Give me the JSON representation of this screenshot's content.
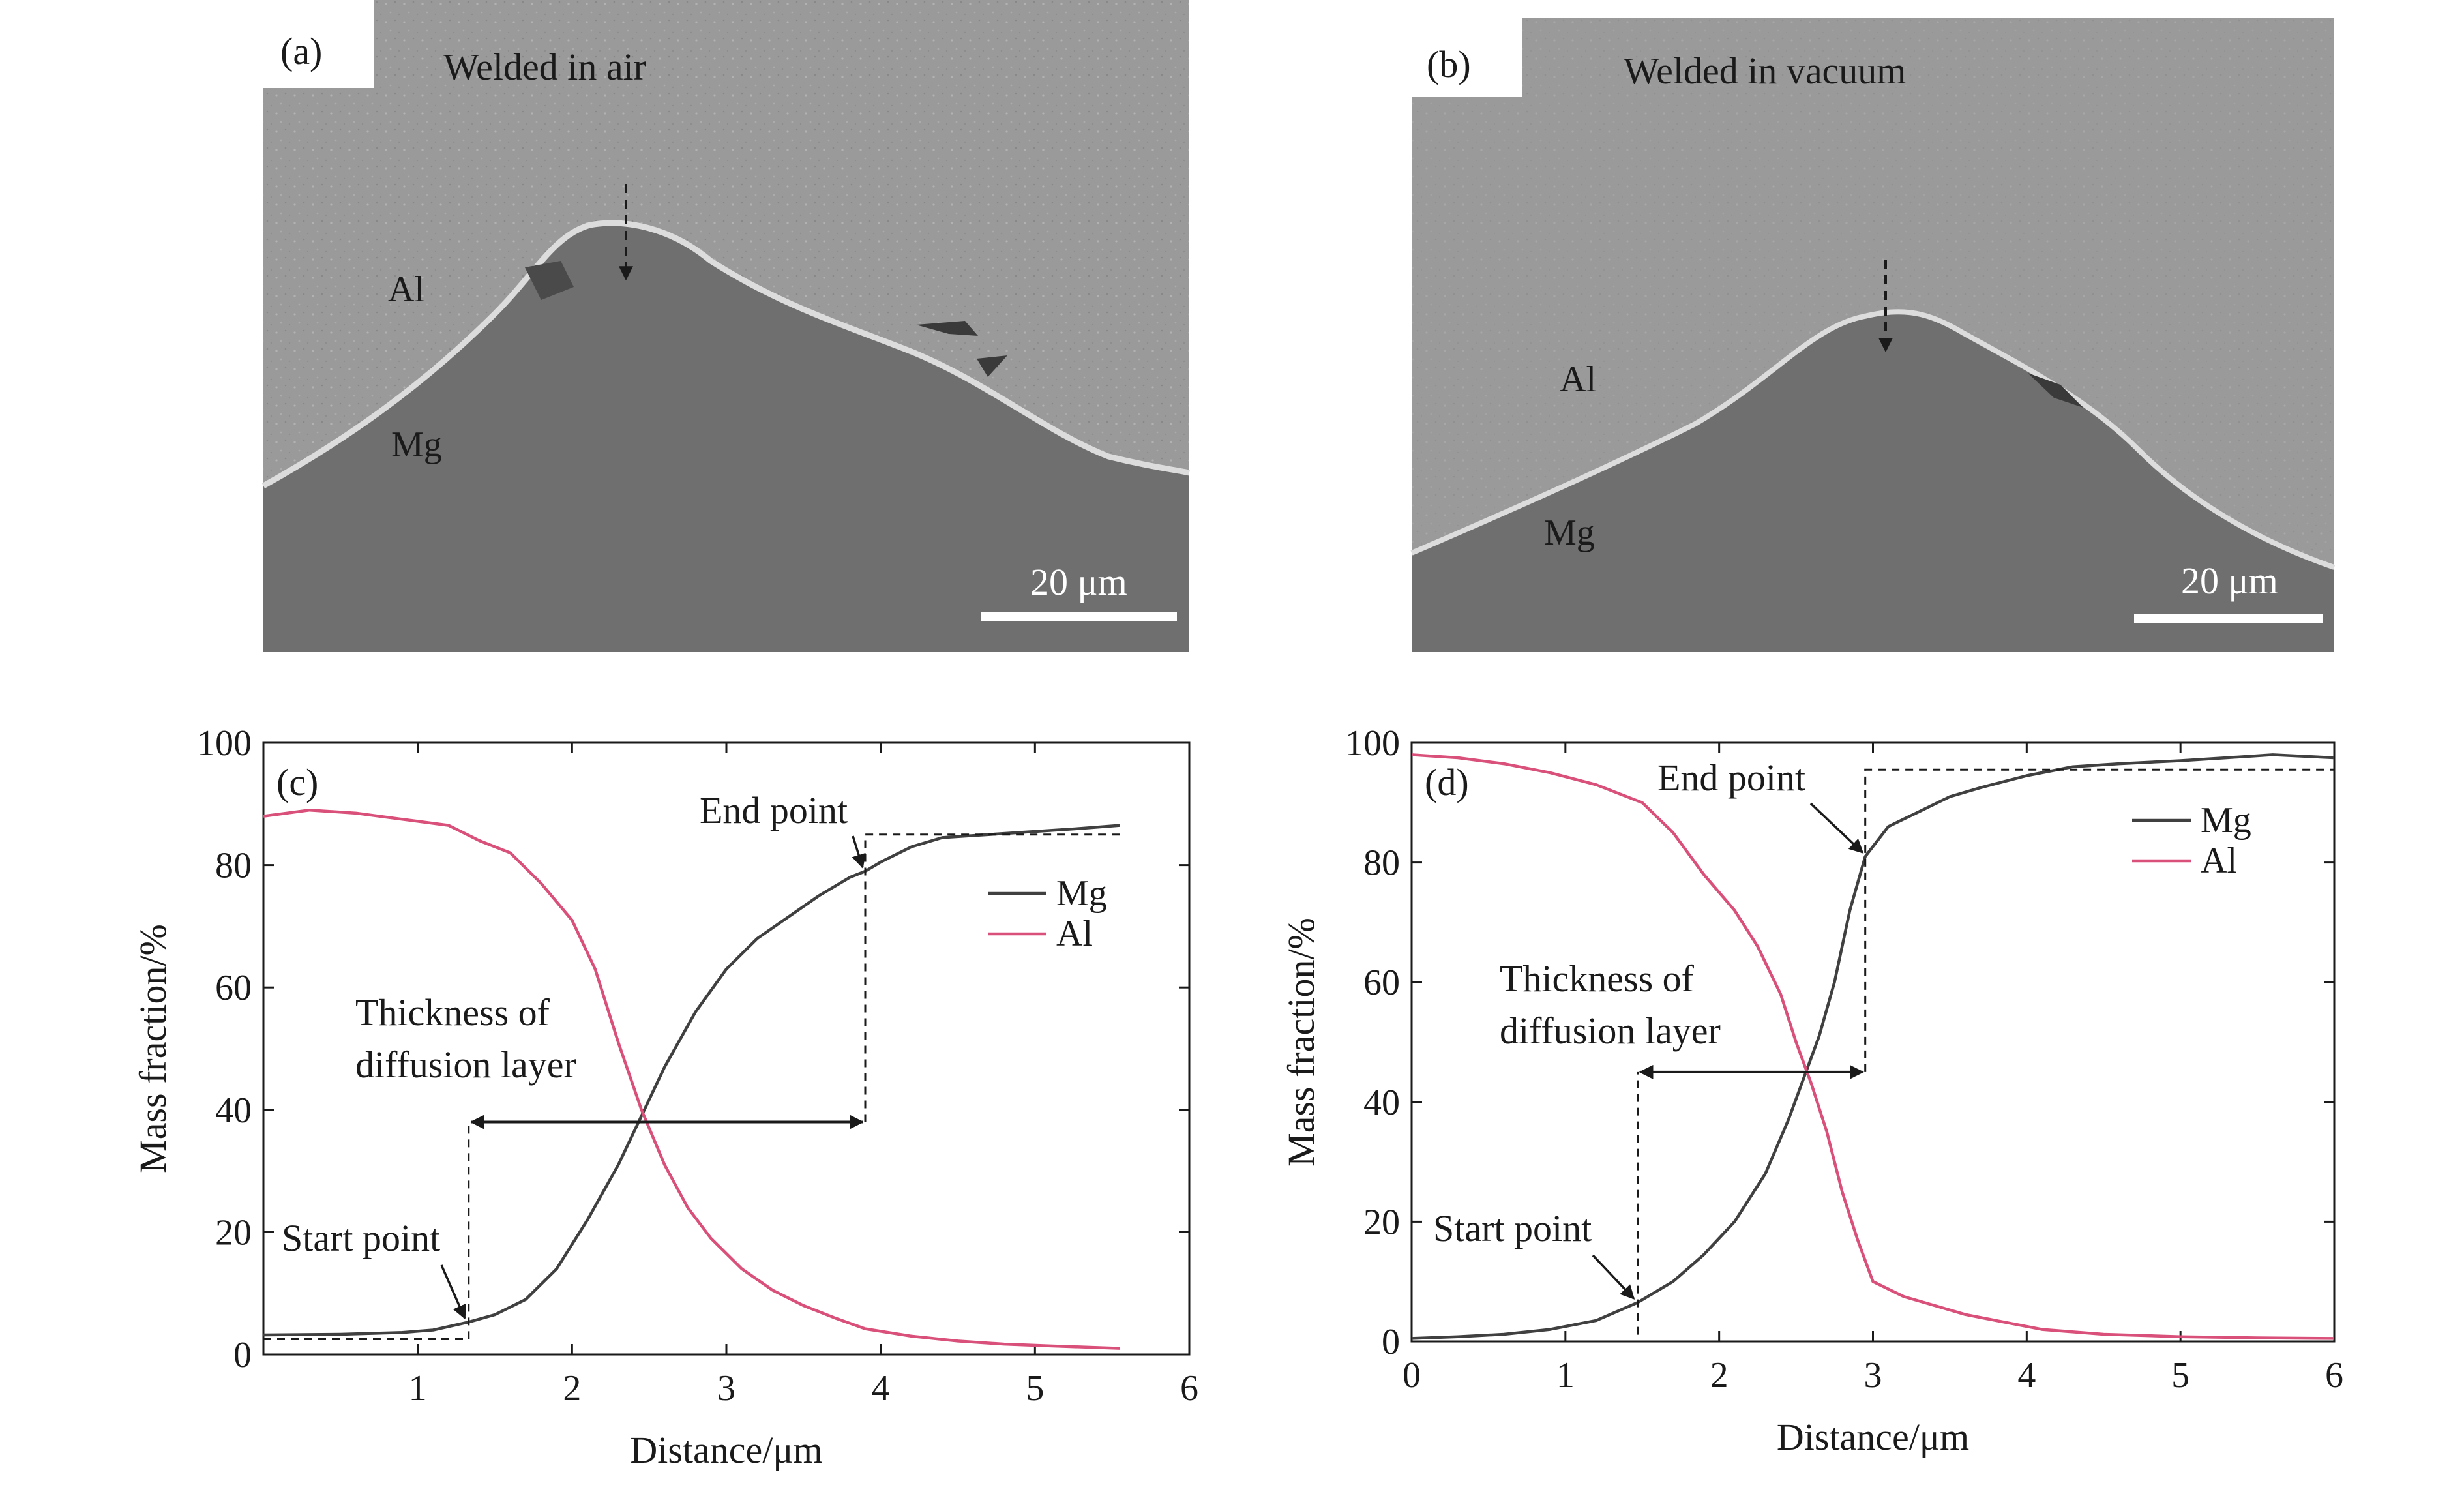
{
  "micrographs": [
    {
      "panel_label": "(a)",
      "title": "Welded in air",
      "phase_top": "Al",
      "phase_bottom": "Mg",
      "scale_bar": "20 μm",
      "colors": {
        "al": "#9a9a9a",
        "mg": "#6f6f6f",
        "interface": "#d8d8d8"
      }
    },
    {
      "panel_label": "(b)",
      "title": "Welded in vacuum",
      "phase_top": "Al",
      "phase_bottom": "Mg",
      "scale_bar": "20 μm",
      "colors": {
        "al": "#9a9a9a",
        "mg": "#6f6f6f",
        "interface": "#d8d8d8"
      }
    }
  ],
  "chart_data": [
    {
      "type": "line",
      "panel_label": "(c)",
      "xlabel": "Distance/μm",
      "ylabel": "Mass fraction/%",
      "xlim": [
        0,
        6
      ],
      "ylim": [
        0,
        100
      ],
      "xticks": [
        "1",
        "2",
        "3",
        "4",
        "5",
        "6"
      ],
      "yticks": [
        "0",
        "20",
        "40",
        "60",
        "80",
        "100"
      ],
      "grid": false,
      "legend_position": "upper-right",
      "series": [
        {
          "name": "Mg",
          "color": "#404040",
          "points": [
            [
              0,
              3.2
            ],
            [
              0.5,
              3.3
            ],
            [
              0.9,
              3.6
            ],
            [
              1.1,
              4.0
            ],
            [
              1.33,
              5.3
            ],
            [
              1.5,
              6.5
            ],
            [
              1.7,
              9.0
            ],
            [
              1.9,
              14.0
            ],
            [
              2.1,
              22.0
            ],
            [
              2.3,
              31.0
            ],
            [
              2.45,
              39.0
            ],
            [
              2.6,
              47.0
            ],
            [
              2.8,
              56.0
            ],
            [
              3.0,
              63.0
            ],
            [
              3.2,
              68.0
            ],
            [
              3.4,
              71.5
            ],
            [
              3.6,
              75.0
            ],
            [
              3.8,
              78.0
            ],
            [
              3.9,
              79.0
            ],
            [
              4.0,
              80.5
            ],
            [
              4.2,
              83.0
            ],
            [
              4.4,
              84.5
            ],
            [
              4.7,
              85.0
            ],
            [
              5.0,
              85.5
            ],
            [
              5.3,
              86.0
            ],
            [
              5.55,
              86.5
            ]
          ]
        },
        {
          "name": "Al",
          "color": "#d9507a",
          "points": [
            [
              0,
              88.0
            ],
            [
              0.3,
              89.0
            ],
            [
              0.6,
              88.5
            ],
            [
              0.9,
              87.5
            ],
            [
              1.2,
              86.5
            ],
            [
              1.4,
              84.0
            ],
            [
              1.6,
              82.0
            ],
            [
              1.8,
              77.0
            ],
            [
              2.0,
              71.0
            ],
            [
              2.15,
              63.0
            ],
            [
              2.3,
              51.0
            ],
            [
              2.45,
              40.0
            ],
            [
              2.6,
              31.0
            ],
            [
              2.75,
              24.0
            ],
            [
              2.9,
              19.0
            ],
            [
              3.1,
              14.0
            ],
            [
              3.3,
              10.5
            ],
            [
              3.5,
              8.0
            ],
            [
              3.7,
              6.0
            ],
            [
              3.9,
              4.2
            ],
            [
              4.2,
              3.0
            ],
            [
              4.5,
              2.2
            ],
            [
              4.8,
              1.7
            ],
            [
              5.1,
              1.4
            ],
            [
              5.55,
              1.0
            ]
          ]
        }
      ],
      "annotations": {
        "start_label": "Start point",
        "end_label": "End point",
        "layer_label_1": "Thickness of",
        "layer_label_2": "diffusion layer",
        "start_point": [
          1.33,
          5.3
        ],
        "end_point": [
          3.9,
          79.0
        ],
        "start_x": 1.33,
        "end_x": 3.9,
        "start_level": 2.5,
        "end_level": 85.0,
        "arrow_y": 38.0
      }
    },
    {
      "type": "line",
      "panel_label": "(d)",
      "xlabel": "Distance/μm",
      "ylabel": "Mass fraction/%",
      "xlim": [
        0,
        6
      ],
      "ylim": [
        0,
        100
      ],
      "xticks": [
        "0",
        "1",
        "2",
        "3",
        "4",
        "5",
        "6"
      ],
      "yticks": [
        "0",
        "20",
        "40",
        "60",
        "80",
        "100"
      ],
      "grid": false,
      "legend_position": "upper-right",
      "series": [
        {
          "name": "Mg",
          "color": "#404040",
          "points": [
            [
              0,
              0.5
            ],
            [
              0.3,
              0.8
            ],
            [
              0.6,
              1.2
            ],
            [
              0.9,
              2.0
            ],
            [
              1.2,
              3.5
            ],
            [
              1.47,
              6.5
            ],
            [
              1.7,
              10.0
            ],
            [
              1.9,
              14.5
            ],
            [
              2.1,
              20.0
            ],
            [
              2.3,
              28.0
            ],
            [
              2.45,
              37.0
            ],
            [
              2.55,
              44.0
            ],
            [
              2.65,
              51.0
            ],
            [
              2.75,
              60.0
            ],
            [
              2.85,
              72.0
            ],
            [
              2.95,
              81.0
            ],
            [
              3.1,
              86.0
            ],
            [
              3.3,
              88.5
            ],
            [
              3.5,
              91.0
            ],
            [
              3.7,
              92.5
            ],
            [
              4.0,
              94.5
            ],
            [
              4.3,
              96.0
            ],
            [
              4.6,
              96.5
            ],
            [
              5.0,
              97.0
            ],
            [
              5.3,
              97.5
            ],
            [
              5.6,
              98.0
            ],
            [
              6.0,
              97.5
            ]
          ]
        },
        {
          "name": "Al",
          "color": "#d9507a",
          "points": [
            [
              0,
              98.0
            ],
            [
              0.3,
              97.5
            ],
            [
              0.6,
              96.5
            ],
            [
              0.9,
              95.0
            ],
            [
              1.2,
              93.0
            ],
            [
              1.5,
              90.0
            ],
            [
              1.7,
              85.0
            ],
            [
              1.9,
              78.0
            ],
            [
              2.1,
              72.0
            ],
            [
              2.25,
              66.0
            ],
            [
              2.4,
              58.0
            ],
            [
              2.5,
              50.0
            ],
            [
              2.6,
              43.0
            ],
            [
              2.7,
              35.0
            ],
            [
              2.8,
              25.0
            ],
            [
              2.9,
              17.0
            ],
            [
              3.0,
              10.0
            ],
            [
              3.2,
              7.5
            ],
            [
              3.4,
              6.0
            ],
            [
              3.6,
              4.5
            ],
            [
              3.8,
              3.5
            ],
            [
              4.1,
              2.0
            ],
            [
              4.5,
              1.2
            ],
            [
              5.0,
              0.8
            ],
            [
              5.5,
              0.6
            ],
            [
              6.0,
              0.5
            ]
          ]
        }
      ],
      "annotations": {
        "start_label": "Start point",
        "end_label": "End point",
        "layer_label_1": "Thickness of",
        "layer_label_2": "diffusion layer",
        "start_point": [
          1.47,
          6.5
        ],
        "end_point": [
          2.95,
          81.0
        ],
        "start_x": 1.47,
        "end_x": 2.95,
        "start_level": 0.0,
        "end_level": 95.5,
        "arrow_y": 45.0
      }
    }
  ]
}
